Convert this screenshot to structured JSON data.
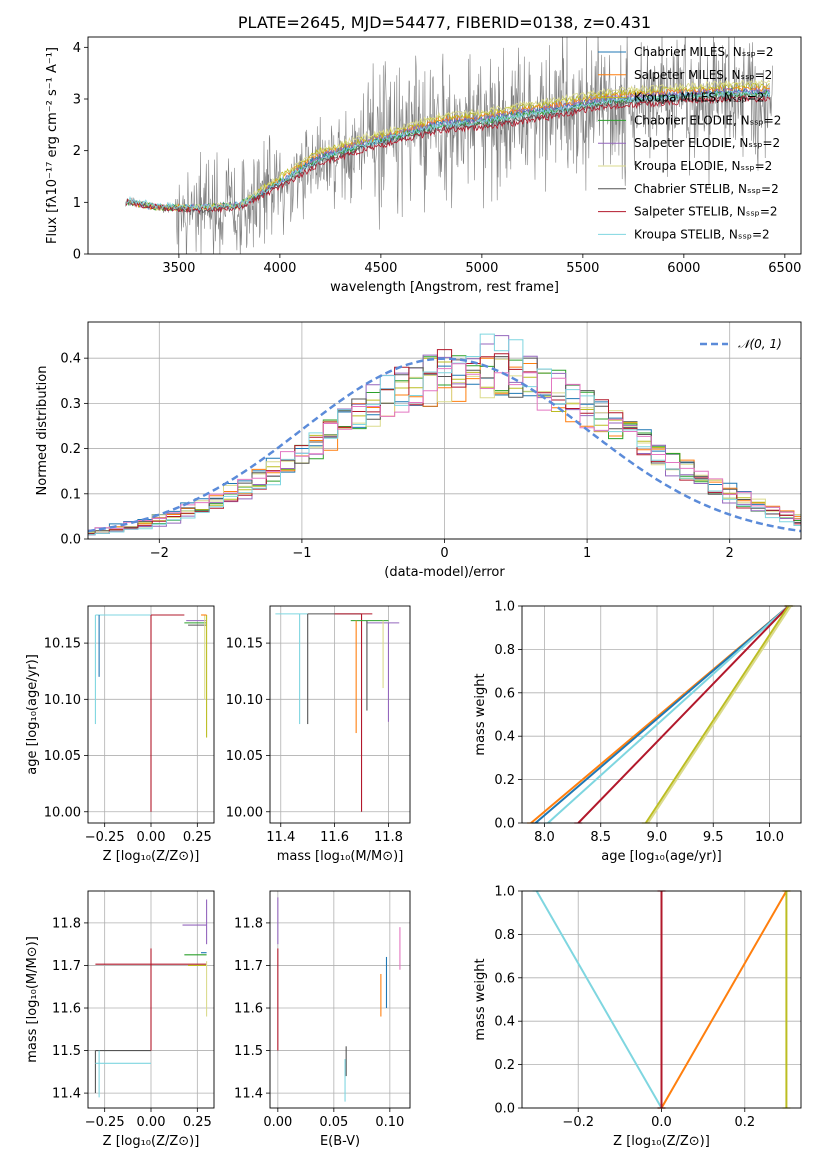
{
  "chart_data": [
    {
      "type": "line",
      "panel": "spectrum",
      "title": "PLATE=2645, MJD=54477, FIBERID=0138, z=0.431",
      "xlabel": "wavelength [Angstrom, rest frame]",
      "ylabel": "Flux [fλ10⁻¹⁷ erg cm⁻² s⁻¹ A⁻¹]",
      "xlim": [
        3050,
        6580
      ],
      "ylim": [
        0,
        4.2
      ],
      "xticks": [
        3500,
        4000,
        4500,
        5000,
        5500,
        6000,
        6500
      ],
      "yticks": [
        0,
        1,
        2,
        3,
        4
      ],
      "grid": false,
      "legend_position": "top-right",
      "data_color": "#808080",
      "series": [
        {
          "name": "Chabrier MILES, Nₛₛₚ=2",
          "color": "#1f77b4",
          "x": [
            3250,
            3400,
            3600,
            3800,
            4000,
            4200,
            4400,
            4600,
            4800,
            5000,
            5200,
            5400,
            5600,
            5800,
            6000,
            6200,
            6400
          ],
          "y": [
            1.0,
            0.9,
            0.9,
            0.95,
            1.4,
            1.9,
            2.1,
            2.3,
            2.55,
            2.6,
            2.75,
            2.85,
            3.0,
            3.0,
            3.1,
            3.15,
            3.15
          ]
        },
        {
          "name": "Salpeter MILES, Nₛₛₚ=2",
          "color": "#ff7f0e",
          "x": [
            3250,
            3400,
            3600,
            3800,
            4000,
            4200,
            4400,
            4600,
            4800,
            5000,
            5200,
            5400,
            5600,
            5800,
            6000,
            6200,
            6400
          ],
          "y": [
            1.0,
            0.9,
            0.9,
            0.95,
            1.45,
            1.95,
            2.15,
            2.35,
            2.6,
            2.65,
            2.8,
            2.9,
            3.05,
            3.1,
            3.15,
            3.2,
            3.2
          ]
        },
        {
          "name": "Kroupa MILES, Nₛₛₚ=2",
          "color": "#bcbd22",
          "x": [
            3250,
            3400,
            3600,
            3800,
            4000,
            4200,
            4400,
            4600,
            4800,
            5000,
            5200,
            5400,
            5600,
            5800,
            6000,
            6200,
            6400
          ],
          "y": [
            1.0,
            0.9,
            0.9,
            0.95,
            1.5,
            2.0,
            2.2,
            2.4,
            2.65,
            2.7,
            2.85,
            2.95,
            3.1,
            3.15,
            3.2,
            3.25,
            3.25
          ]
        },
        {
          "name": "Chabrier ELODIE, Nₛₛₚ=2",
          "color": "#2ca02c",
          "x": [
            3250,
            3400,
            3600,
            3800,
            4000,
            4200,
            4400,
            4600,
            4800,
            5000,
            5200,
            5400,
            5600,
            5800,
            6000,
            6200,
            6400
          ],
          "y": [
            1.0,
            0.9,
            0.9,
            0.95,
            1.4,
            1.85,
            2.1,
            2.3,
            2.5,
            2.55,
            2.7,
            2.8,
            2.95,
            3.0,
            3.05,
            3.1,
            3.1
          ]
        },
        {
          "name": "Salpeter ELODIE, Nₛₛₚ=2",
          "color": "#9467bd",
          "x": [
            3250,
            3400,
            3600,
            3800,
            4000,
            4200,
            4400,
            4600,
            4800,
            5000,
            5200,
            5400,
            5600,
            5800,
            6000,
            6200,
            6400
          ],
          "y": [
            1.0,
            0.9,
            0.9,
            0.95,
            1.4,
            1.9,
            2.15,
            2.35,
            2.55,
            2.6,
            2.75,
            2.85,
            3.0,
            3.05,
            3.1,
            3.15,
            3.15
          ]
        },
        {
          "name": "Kroupa ELODIE, Nₛₛₚ=2",
          "color": "#dbdb8d",
          "x": [
            3250,
            3400,
            3600,
            3800,
            4000,
            4200,
            4400,
            4600,
            4800,
            5000,
            5200,
            5400,
            5600,
            5800,
            6000,
            6200,
            6400
          ],
          "y": [
            1.0,
            0.9,
            0.9,
            0.95,
            1.5,
            2.0,
            2.25,
            2.45,
            2.7,
            2.75,
            2.9,
            3.0,
            3.15,
            3.2,
            3.25,
            3.3,
            3.3
          ]
        },
        {
          "name": "Chabrier STELIB, Nₛₛₚ=2",
          "color": "#555555",
          "x": [
            3250,
            3400,
            3600,
            3800,
            4000,
            4200,
            4400,
            4600,
            4800,
            5000,
            5200,
            5400,
            5600,
            5800,
            6000,
            6200,
            6400
          ],
          "y": [
            1.0,
            0.9,
            0.85,
            0.9,
            1.35,
            1.8,
            2.05,
            2.25,
            2.45,
            2.5,
            2.6,
            2.75,
            2.9,
            2.95,
            3.0,
            3.05,
            3.05
          ]
        },
        {
          "name": "Salpeter STELIB, Nₛₛₚ=2",
          "color": "#b2182b",
          "x": [
            3250,
            3400,
            3600,
            3800,
            4000,
            4200,
            4400,
            4600,
            4800,
            5000,
            5200,
            5400,
            5600,
            5800,
            6000,
            6200,
            6400
          ],
          "y": [
            1.0,
            0.9,
            0.85,
            0.9,
            1.3,
            1.75,
            2.0,
            2.2,
            2.4,
            2.45,
            2.55,
            2.7,
            2.85,
            2.9,
            2.95,
            3.0,
            3.0
          ]
        },
        {
          "name": "Kroupa STELIB, Nₛₛₚ=2",
          "color": "#7fd6e0",
          "x": [
            3250,
            3400,
            3600,
            3800,
            4000,
            4200,
            4400,
            4600,
            4800,
            5000,
            5200,
            5400,
            5600,
            5800,
            6000,
            6200,
            6400
          ],
          "y": [
            1.05,
            0.95,
            0.9,
            0.95,
            1.4,
            1.85,
            2.1,
            2.3,
            2.5,
            2.55,
            2.7,
            2.8,
            2.95,
            3.0,
            3.05,
            3.1,
            3.1
          ]
        }
      ]
    },
    {
      "type": "line",
      "panel": "residuals",
      "xlabel": "(data-model)/error",
      "ylabel": "Normed distribution",
      "xlim": [
        -2.5,
        2.5
      ],
      "ylim": [
        0,
        0.48
      ],
      "xticks": [
        -2,
        -1,
        0,
        1,
        2
      ],
      "yticks": [
        0.0,
        0.1,
        0.2,
        0.3,
        0.4
      ],
      "grid": true,
      "legend_position": "top-right",
      "reference_curve": {
        "name": "𝒩(0, 1)",
        "mean": 0,
        "sigma": 1,
        "color": "#5b8bd9"
      },
      "histogram_colors": [
        "#1f77b4",
        "#ff7f0e",
        "#bcbd22",
        "#2ca02c",
        "#9467bd",
        "#dbdb8d",
        "#555555",
        "#b2182b",
        "#7fd6e0",
        "#e377c2"
      ]
    },
    {
      "type": "scatter",
      "panel": "age-vs-Z",
      "xlabel": "Z [log₁₀(Z/Z⊙)]",
      "ylabel": "age  [log₁₀(age/yr)]",
      "xlim": [
        -0.34,
        0.34
      ],
      "ylim": [
        9.99,
        10.183
      ],
      "xticks": [
        -0.25,
        0.0,
        0.25
      ],
      "xtick_labels": [
        "−0.25",
        "0.00",
        "0.25"
      ],
      "yticks": [
        10.0,
        10.05,
        10.1,
        10.15
      ],
      "ytick_labels": [
        "10.00",
        "10.05",
        "10.10",
        "10.15"
      ],
      "grid": true
    },
    {
      "type": "scatter",
      "panel": "age-vs-mass",
      "xlabel": "mass [log₁₀(M/M⊙)]",
      "xlim": [
        11.36,
        11.88
      ],
      "ylim": [
        9.99,
        10.183
      ],
      "xticks": [
        11.4,
        11.6,
        11.8
      ],
      "xtick_labels": [
        "11.4",
        "11.6",
        "11.8"
      ],
      "yticks": [
        10.0,
        10.05,
        10.1,
        10.15
      ],
      "ytick_labels": [
        "10.00",
        "10.05",
        "10.10",
        "10.15"
      ],
      "grid": true
    },
    {
      "type": "line",
      "panel": "mass-weight-vs-age",
      "xlabel": "age  [log₁₀(age/yr)]",
      "ylabel": "mass weight",
      "xlim": [
        7.8,
        10.28
      ],
      "ylim": [
        0,
        1
      ],
      "xticks": [
        8.0,
        8.5,
        9.0,
        9.5,
        10.0
      ],
      "xtick_labels": [
        "8.0",
        "8.5",
        "9.0",
        "9.5",
        "10.0"
      ],
      "yticks": [
        0.0,
        0.2,
        0.4,
        0.6,
        0.8,
        1.0
      ],
      "ytick_labels": [
        "0.0",
        "0.2",
        "0.4",
        "0.6",
        "0.8",
        "1.0"
      ],
      "grid": true,
      "series": [
        {
          "color": "#ff7f0e",
          "x": [
            7.88,
            10.17
          ],
          "y": [
            0.0,
            1.0
          ]
        },
        {
          "color": "#1f77b4",
          "x": [
            7.92,
            10.17
          ],
          "y": [
            0.0,
            1.0
          ]
        },
        {
          "color": "#7fd6e0",
          "x": [
            8.03,
            10.17
          ],
          "y": [
            0.0,
            1.0
          ]
        },
        {
          "color": "#b2182b",
          "x": [
            8.3,
            10.17
          ],
          "y": [
            0.0,
            1.0
          ]
        },
        {
          "color": "#bcbd22",
          "x": [
            8.9,
            10.17
          ],
          "y": [
            0.0,
            1.0
          ]
        },
        {
          "color": "#dbdb8d",
          "x": [
            8.92,
            10.19
          ],
          "y": [
            0.0,
            1.0
          ]
        }
      ]
    },
    {
      "type": "scatter",
      "panel": "mass-vs-Z",
      "xlabel": "Z [log₁₀(Z/Z⊙)]",
      "ylabel": "mass [log₁₀(M/M⊙)]",
      "xlim": [
        -0.34,
        0.34
      ],
      "ylim": [
        11.365,
        11.875
      ],
      "xticks": [
        -0.25,
        0.0,
        0.25
      ],
      "xtick_labels": [
        "−0.25",
        "0.00",
        "0.25"
      ],
      "yticks": [
        11.4,
        11.5,
        11.6,
        11.7,
        11.8
      ],
      "ytick_labels": [
        "11.4",
        "11.5",
        "11.6",
        "11.7",
        "11.8"
      ],
      "grid": true
    },
    {
      "type": "scatter",
      "panel": "mass-vs-EBV",
      "xlabel": "E(B-V)",
      "xlim": [
        -0.007,
        0.118
      ],
      "ylim": [
        11.365,
        11.875
      ],
      "xticks": [
        0.0,
        0.05,
        0.1
      ],
      "xtick_labels": [
        "0.00",
        "0.05",
        "0.10"
      ],
      "yticks": [
        11.4,
        11.5,
        11.6,
        11.7,
        11.8
      ],
      "ytick_labels": [
        "11.4",
        "11.5",
        "11.6",
        "11.7",
        "11.8"
      ],
      "grid": true
    },
    {
      "type": "line",
      "panel": "mass-weight-vs-Z",
      "xlabel": "Z [log₁₀(Z/Z⊙)]",
      "ylabel": "mass weight",
      "xlim": [
        -0.335,
        0.335
      ],
      "ylim": [
        0,
        1
      ],
      "xticks": [
        -0.2,
        0.0,
        0.2
      ],
      "xtick_labels": [
        "−0.2",
        "0.0",
        "0.2"
      ],
      "yticks": [
        0.0,
        0.2,
        0.4,
        0.6,
        0.8,
        1.0
      ],
      "ytick_labels": [
        "0.0",
        "0.2",
        "0.4",
        "0.6",
        "0.8",
        "1.0"
      ],
      "grid": true,
      "series": [
        {
          "color": "#7fd6e0",
          "x": [
            -0.3,
            0.0
          ],
          "y": [
            1.0,
            0.0
          ]
        },
        {
          "color": "#ff7f0e",
          "x": [
            0.0,
            0.3
          ],
          "y": [
            0.0,
            1.0
          ]
        },
        {
          "color": "#b2182b",
          "x": [
            0.0,
            0.0
          ],
          "y": [
            0.0,
            1.0
          ]
        },
        {
          "color": "#bcbd22",
          "x": [
            0.3,
            0.3
          ],
          "y": [
            0.0,
            1.0
          ]
        }
      ]
    }
  ]
}
